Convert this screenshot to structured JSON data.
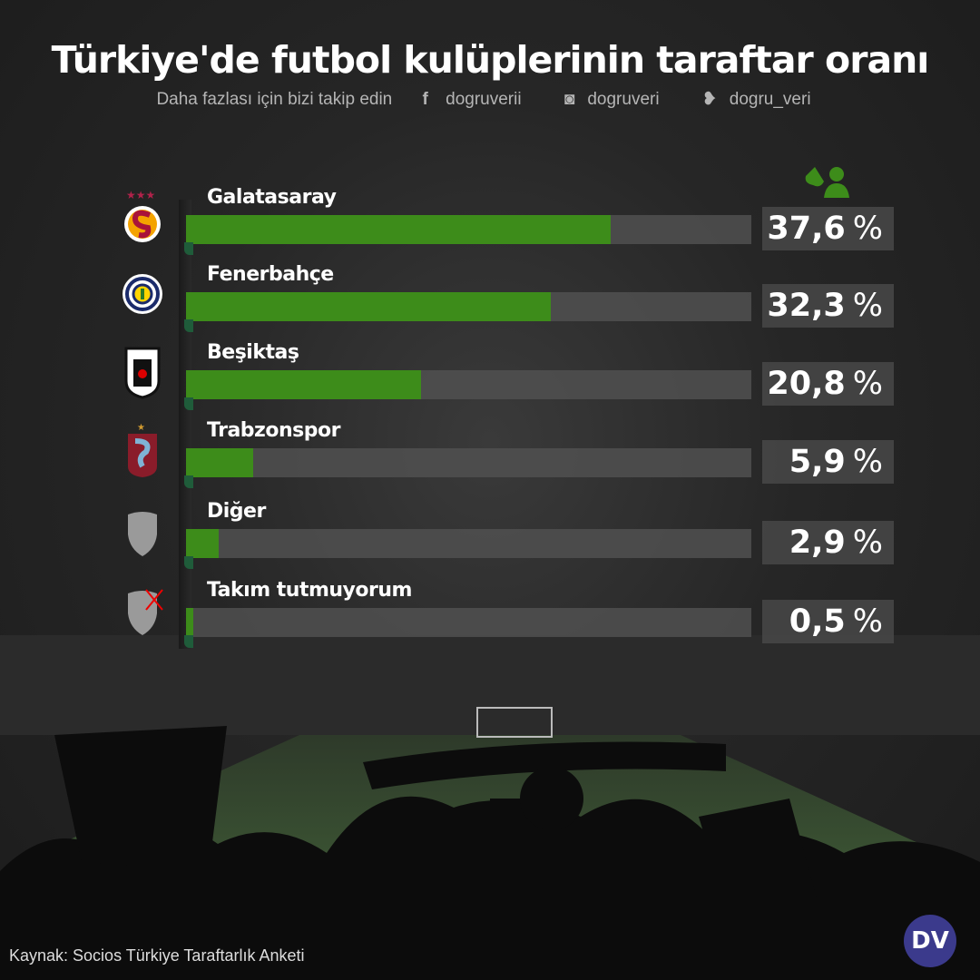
{
  "header": {
    "title": "Türkiye'de futbol kulüplerinin taraftar oranı",
    "subtitle": "Daha fazlası için bizi takip edin",
    "social": [
      {
        "icon": "facebook-icon",
        "glyph": "f",
        "handle": "dogruverii"
      },
      {
        "icon": "instagram-icon",
        "glyph": "◙",
        "handle": "dogruveri"
      },
      {
        "icon": "twitter-icon",
        "glyph": "🐦",
        "handle": "dogru_veri"
      }
    ]
  },
  "chart_data": {
    "type": "bar",
    "orientation": "horizontal",
    "title": "Türkiye'de futbol kulüplerinin taraftar oranı",
    "categories": [
      "Galatasaray",
      "Fenerbahçe",
      "Beşiktaş",
      "Trabzonspor",
      "Diğer",
      "Takım tutmuyorum"
    ],
    "values": [
      37.6,
      32.3,
      20.8,
      5.9,
      2.9,
      0.5
    ],
    "value_labels": [
      "37,6",
      "32,3",
      "20,8",
      "5,9",
      "2,9",
      "0,5"
    ],
    "unit": "%",
    "xlim": [
      0,
      50
    ],
    "grid": false,
    "colors": {
      "fill": "#3d8c1a",
      "track": "#505050"
    }
  },
  "footer": {
    "source": "Kaynak: Socios Türkiye Taraftarlık Anketi",
    "brand": "DV"
  }
}
